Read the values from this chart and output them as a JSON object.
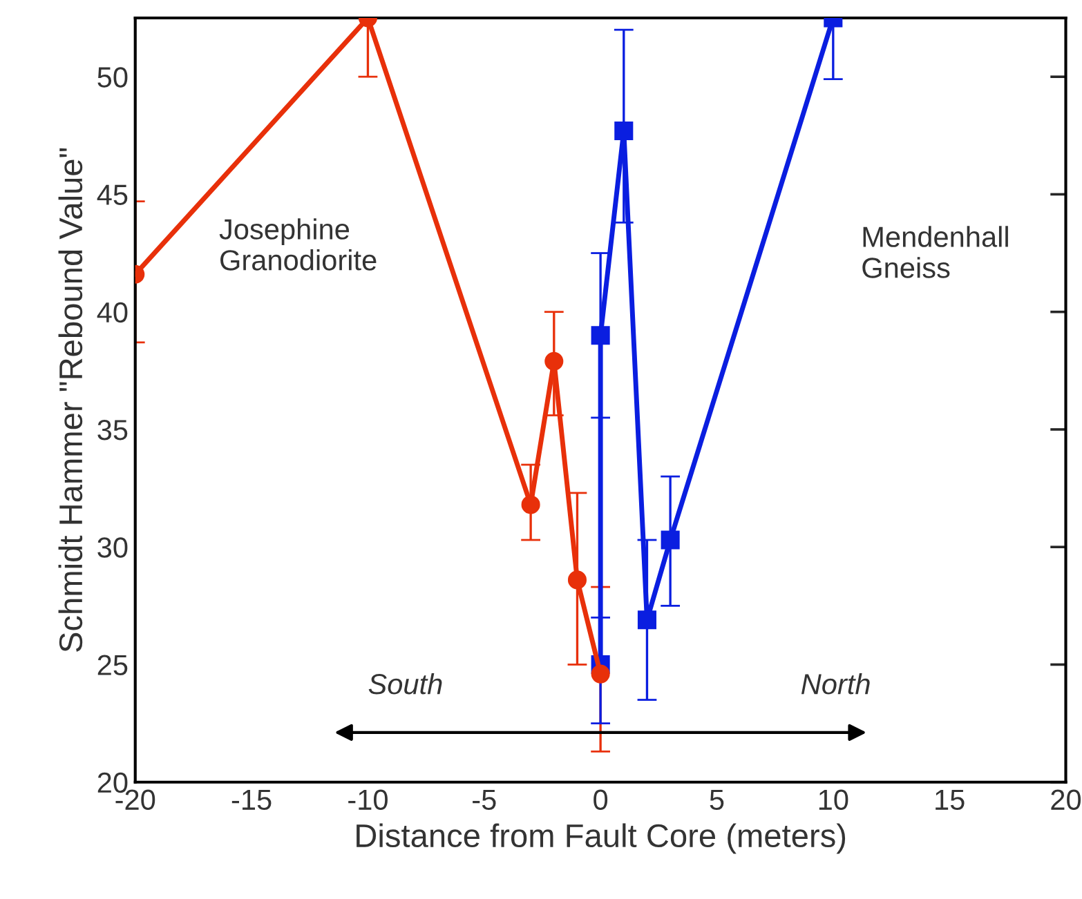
{
  "chart_data": {
    "type": "line",
    "xlabel": "Distance from Fault Core (meters)",
    "ylabel": "Schmidt Hammer \"Rebound Value\"",
    "annotations": [
      "Josephine\nGranodiorite",
      "Mendenhall\nGneiss",
      "South",
      "North"
    ],
    "xlim": [
      -20,
      20
    ],
    "xticks": [
      -20,
      -15,
      -10,
      -5,
      0,
      5,
      10,
      15,
      20
    ],
    "ylim": [
      20,
      52.5
    ],
    "yticks": [
      20,
      25,
      30,
      35,
      40,
      45,
      50
    ],
    "grid": false,
    "line_style": "solid",
    "series": [
      {
        "color": "#e8300a",
        "marker": "circle",
        "x": [
          -20,
          -10,
          -3,
          -2,
          -1,
          0
        ],
        "values": [
          41.6,
          52.5,
          31.8,
          37.9,
          28.6,
          24.6
        ],
        "errors": [
          [
            38.7,
            44.7
          ],
          [
            50.0,
            52.5
          ],
          [
            30.3,
            33.5
          ],
          [
            35.6,
            40.0
          ],
          [
            25.0,
            32.3
          ],
          [
            21.3,
            28.3
          ]
        ]
      },
      {
        "color": "#0a1ee0",
        "marker": "square",
        "x": [
          0,
          0,
          1,
          2,
          3,
          10
        ],
        "values": [
          25.0,
          39.0,
          47.7,
          26.9,
          30.3,
          52.5
        ],
        "errors": [
          [
            22.5,
            27.0
          ],
          [
            35.5,
            42.5
          ],
          [
            43.8,
            52.0
          ],
          [
            23.5,
            30.3
          ],
          [
            27.5,
            33.0
          ],
          [
            49.9,
            52.5
          ]
        ]
      }
    ]
  }
}
